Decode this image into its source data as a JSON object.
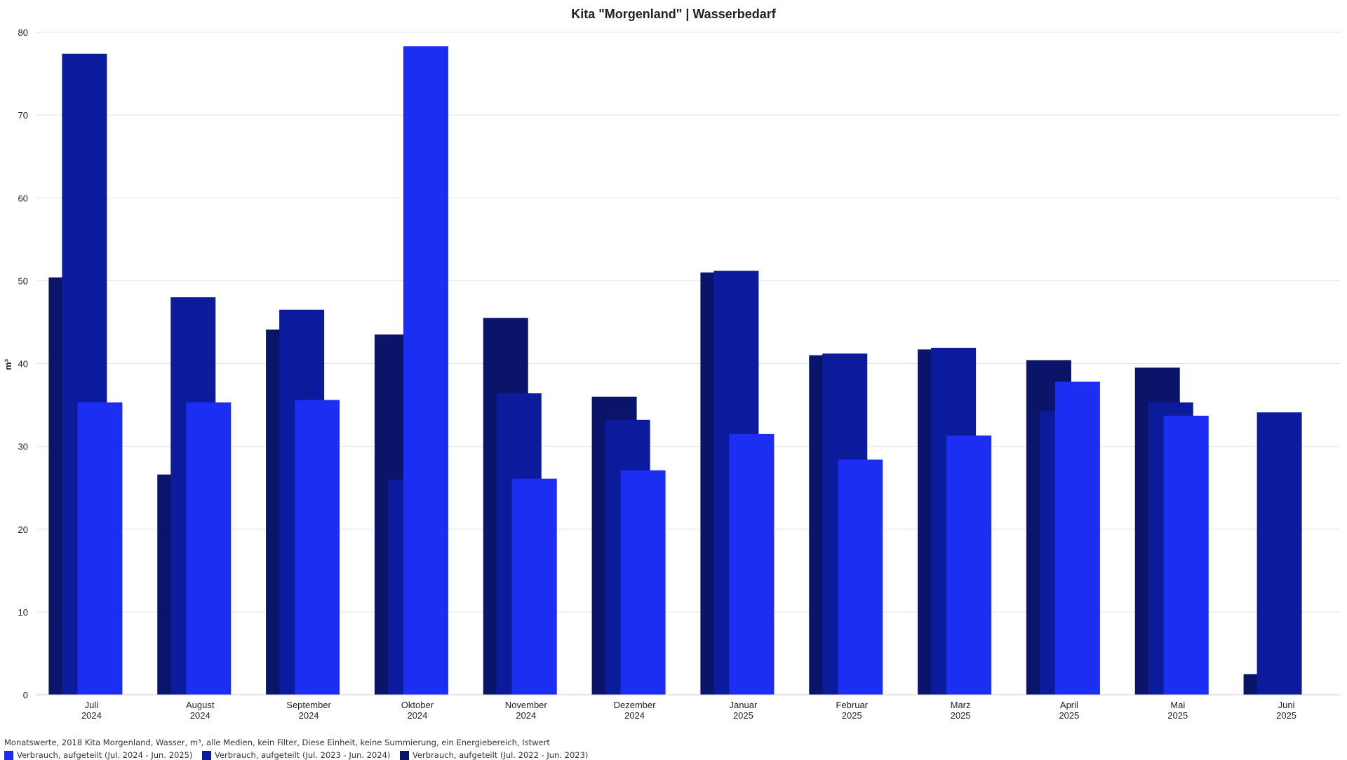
{
  "chart_data": {
    "type": "bar",
    "title": "Kita \"Morgenland\" | Wasserbedarf",
    "ylabel": "m³",
    "ylim": [
      0,
      80
    ],
    "yticks": [
      0,
      10,
      20,
      30,
      40,
      50,
      60,
      70,
      80
    ],
    "grid": true,
    "categories": [
      {
        "month": "Juli",
        "year": "2024"
      },
      {
        "month": "August",
        "year": "2024"
      },
      {
        "month": "September",
        "year": "2024"
      },
      {
        "month": "Oktober",
        "year": "2024"
      },
      {
        "month": "November",
        "year": "2024"
      },
      {
        "month": "Dezember",
        "year": "2024"
      },
      {
        "month": "Januar",
        "year": "2025"
      },
      {
        "month": "Februar",
        "year": "2025"
      },
      {
        "month": "Marz",
        "year": "2025"
      },
      {
        "month": "April",
        "year": "2025"
      },
      {
        "month": "Mai",
        "year": "2025"
      },
      {
        "month": "Juni",
        "year": "2025"
      }
    ],
    "series": [
      {
        "name": "Verbrauch, aufgeteilt (Jul. 2022 - Jun. 2023)",
        "color": "#0a1468",
        "values": [
          50.4,
          26.6,
          44.1,
          43.5,
          45.5,
          36.0,
          51.0,
          41.0,
          41.7,
          40.4,
          39.5,
          2.5
        ]
      },
      {
        "name": "Verbrauch, aufgeteilt (Jul. 2023 - Jun. 2024)",
        "color": "#0b1b9c",
        "values": [
          77.4,
          48.0,
          46.5,
          26.0,
          36.4,
          33.2,
          51.2,
          41.2,
          41.9,
          34.3,
          35.3,
          34.1
        ]
      },
      {
        "name": "Verbrauch, aufgeteilt (Jul. 2024 - Jun. 2025)",
        "color": "#1c2ef2",
        "values": [
          35.3,
          35.3,
          35.6,
          78.3,
          26.1,
          27.1,
          31.5,
          28.4,
          31.3,
          37.8,
          33.7,
          null
        ]
      }
    ],
    "legend_order": [
      2,
      1,
      0
    ],
    "legend_placement": "bottom-left"
  },
  "footer": "Monatswerte, 2018 Kita Morgenland, Wasser, m³, alle Medien, kein Filter, Diese Einheit, keine Summierung, ein Energiebereich, Istwert"
}
